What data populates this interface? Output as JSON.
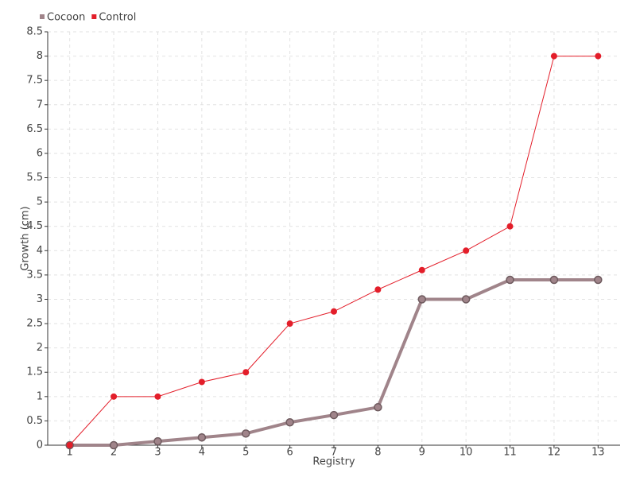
{
  "chart_data": {
    "type": "line",
    "x_label": "Registry",
    "y_label": "Growth (cm)",
    "x": [
      1,
      2,
      3,
      4,
      5,
      6,
      7,
      8,
      9,
      10,
      11,
      12,
      13
    ],
    "series": [
      {
        "name": "Cocoon",
        "color": "#a0848a",
        "values": [
          0,
          0,
          0.08,
          0.16,
          0.24,
          0.47,
          0.62,
          0.78,
          3,
          3,
          3.4,
          3.4,
          3.4
        ]
      },
      {
        "name": "Control",
        "color": "#e31e2a",
        "values": [
          0,
          1,
          1,
          1.3,
          1.5,
          2.5,
          2.75,
          3.2,
          3.6,
          4,
          4.5,
          8,
          8
        ]
      }
    ],
    "xlim": [
      0.5,
      13.5
    ],
    "xticks": [
      1,
      2,
      3,
      4,
      5,
      6,
      7,
      8,
      9,
      10,
      11,
      12,
      13
    ],
    "ylim": [
      0,
      8.5
    ],
    "yticks": [
      0,
      0.5,
      1,
      1.5,
      2,
      2.5,
      3,
      3.5,
      4,
      4.5,
      5,
      5.5,
      6,
      6.5,
      7,
      7.5,
      8,
      8.5
    ],
    "grid": true,
    "legend": "top-left"
  }
}
